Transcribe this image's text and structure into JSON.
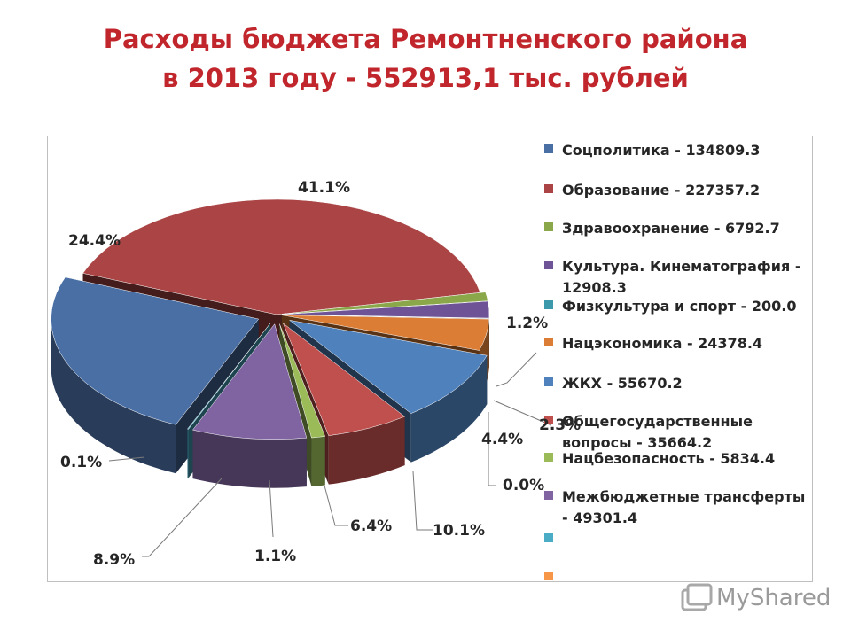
{
  "title": {
    "line1": "Расходы бюджета Ремонтненского района",
    "line2": "в 2013 году - 552913,1 тыс. рублей"
  },
  "chart_data": {
    "type": "pie",
    "title": "Расходы бюджета Ремонтненского района в 2013 году - 552913,1 тыс. рублей",
    "legend_position": "right",
    "series": [
      {
        "name": "Соцполитика - 134809.3",
        "value": 134809.3,
        "percent_label": "24.4%",
        "color": "#4a6fa5"
      },
      {
        "name": "Образование - 227357.2",
        "value": 227357.2,
        "percent_label": "41.1%",
        "color": "#ab4545"
      },
      {
        "name": "Здравоохранение - 6792.7",
        "value": 6792.7,
        "percent_label": "1.2%",
        "color": "#8aa84a"
      },
      {
        "name": "Культура. Кинематография - 12908.3",
        "value": 12908.3,
        "percent_label": "2.3%",
        "color": "#6e5496"
      },
      {
        "name": "Физкультура и спорт - 200.0",
        "value": 200.0,
        "percent_label": "0.0%",
        "color": "#3c99ab"
      },
      {
        "name": "Нацэкономика - 24378.4",
        "value": 24378.4,
        "percent_label": "4.4%",
        "color": "#db7d35"
      },
      {
        "name": "ЖКХ - 55670.2",
        "value": 55670.2,
        "percent_label": "10.1%",
        "color": "#4f81bd"
      },
      {
        "name": "Общегосударственные вопросы - 35664.2",
        "value": 35664.2,
        "percent_label": "6.4%",
        "color": "#c0504d"
      },
      {
        "name": "Нацбезопасность - 5834.4",
        "value": 5834.4,
        "percent_label": "1.1%",
        "color": "#9bbb59"
      },
      {
        "name": "Межбюджетные трансферты - 49301.4",
        "value": 49301.4,
        "percent_label": "8.9%",
        "color": "#8064a2"
      },
      {
        "name": "",
        "value": null,
        "percent_label": "0.1%",
        "color": "#4bacc6"
      },
      {
        "name": "",
        "value": null,
        "percent_label": "",
        "color": "#f79646"
      }
    ]
  },
  "watermark": "MyShared"
}
